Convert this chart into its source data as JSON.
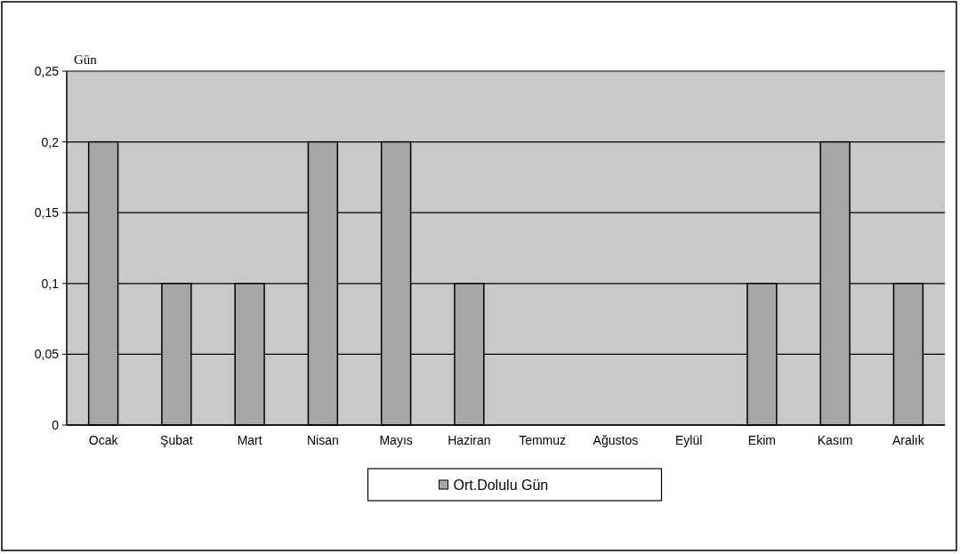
{
  "chart_data": {
    "type": "bar",
    "ylabel": "Gün",
    "categories": [
      "Ocak",
      "Şubat",
      "Mart",
      "Nisan",
      "Mayıs",
      "Haziran",
      "Temmuz",
      "Ağustos",
      "Eylül",
      "Ekim",
      "Kasım",
      "Aralık"
    ],
    "series": [
      {
        "name": "Ort.Dolulu Gün",
        "color": "#a6a6a6",
        "values": [
          0.2,
          0.1,
          0.1,
          0.2,
          0.2,
          0.1,
          0,
          0,
          0,
          0.1,
          0.2,
          0.1
        ]
      }
    ],
    "ylim": [
      0,
      0.25
    ],
    "yticks": [
      0,
      {
        "value": 0.05,
        "label": "0,05"
      },
      {
        "value": 0.1,
        "label": "0,1"
      },
      {
        "value": 0.15,
        "label": "0,15"
      },
      {
        "value": 0.2,
        "label": "0,2"
      },
      {
        "value": 0.25,
        "label": "0,25"
      }
    ],
    "grid": "y",
    "legend": "bottom"
  }
}
